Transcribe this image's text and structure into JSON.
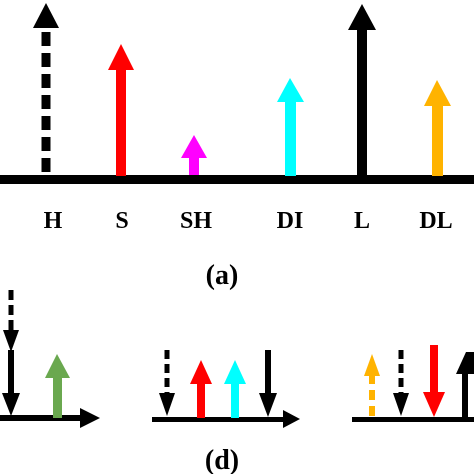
{
  "panel_a": {
    "caption": "(a)",
    "labels": [
      "H",
      "S",
      "SH",
      "DI",
      "L",
      "DL"
    ],
    "arrows": [
      {
        "label": "H",
        "color": "#000000",
        "style": "dashed",
        "direction": "up"
      },
      {
        "label": "S",
        "color": "#ff0000",
        "style": "solid",
        "direction": "up"
      },
      {
        "label": "SH",
        "color": "#ff00ff",
        "style": "solid",
        "direction": "up"
      },
      {
        "label": "DI",
        "color": "#00ffff",
        "style": "solid",
        "direction": "up"
      },
      {
        "label": "L",
        "color": "#000000",
        "style": "solid",
        "direction": "up"
      },
      {
        "label": "DL",
        "color": "#ffb300",
        "style": "solid",
        "direction": "up"
      }
    ]
  },
  "panel_d": {
    "caption": "(d)"
  },
  "colors": {
    "axis": "#000000",
    "green": "#6aa84f",
    "red": "#ff0000",
    "cyan": "#00ffff",
    "orange": "#ffb300"
  }
}
